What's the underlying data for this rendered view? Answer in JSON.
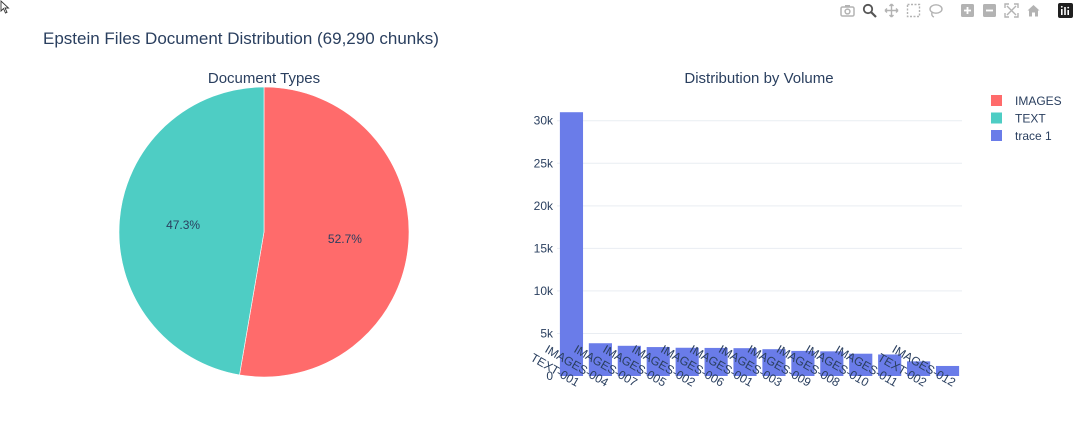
{
  "title": "Epstein Files Document Distribution (69,290 chunks)",
  "modebar": {
    "buttons": [
      {
        "name": "camera-icon"
      },
      {
        "name": "zoom-icon"
      },
      {
        "name": "pan-icon"
      },
      {
        "name": "box-select-icon"
      },
      {
        "name": "lasso-select-icon"
      },
      {
        "name": "zoom-in-icon"
      },
      {
        "name": "zoom-out-icon"
      },
      {
        "name": "autoscale-icon"
      },
      {
        "name": "reset-axes-icon"
      },
      {
        "name": "plotly-logo-icon"
      }
    ]
  },
  "colors": {
    "images": "#ff6b6b",
    "text": "#4ecdc4",
    "bars": "#6a7ce9",
    "grid": "#e9edf2",
    "font": "#2a3f5f"
  },
  "chart_data": [
    {
      "type": "pie",
      "title": "Document Types",
      "labels": [
        "IMAGES",
        "TEXT"
      ],
      "values": [
        52.7,
        47.3
      ],
      "text_labels": [
        "52.7%",
        "47.3%"
      ],
      "colors": [
        "#ff6b6b",
        "#4ecdc4"
      ],
      "direction": "clockwise",
      "start": "12 o'clock"
    },
    {
      "type": "bar",
      "title": "Distribution by Volume",
      "xlabel": "",
      "ylabel": "",
      "categories": [
        "TEXT-001",
        "IMAGES-004",
        "IMAGES-007",
        "IMAGES-005",
        "IMAGES-002",
        "IMAGES-006",
        "IMAGES-001",
        "IMAGES-003",
        "IMAGES-009",
        "IMAGES-008",
        "IMAGES-010",
        "IMAGES-011",
        "TEXT-002",
        "IMAGES-012"
      ],
      "series": [
        {
          "name": "trace 1",
          "values": [
            31000,
            3850,
            3550,
            3400,
            3320,
            3300,
            3270,
            3150,
            2950,
            2900,
            2620,
            2530,
            1720,
            1180
          ]
        }
      ],
      "ylim": [
        0,
        32200
      ],
      "y_ticks": [
        0,
        5000,
        10000,
        15000,
        20000,
        25000,
        30000
      ],
      "y_tick_labels": [
        "0",
        "5k",
        "10k",
        "15k",
        "20k",
        "25k",
        "30k"
      ],
      "grid": true
    }
  ],
  "legend": {
    "placement": "top-right",
    "items": [
      {
        "label": "IMAGES",
        "color": "#ff6b6b"
      },
      {
        "label": "TEXT",
        "color": "#4ecdc4"
      },
      {
        "label": "trace 1",
        "color": "#6a7ce9"
      }
    ]
  }
}
